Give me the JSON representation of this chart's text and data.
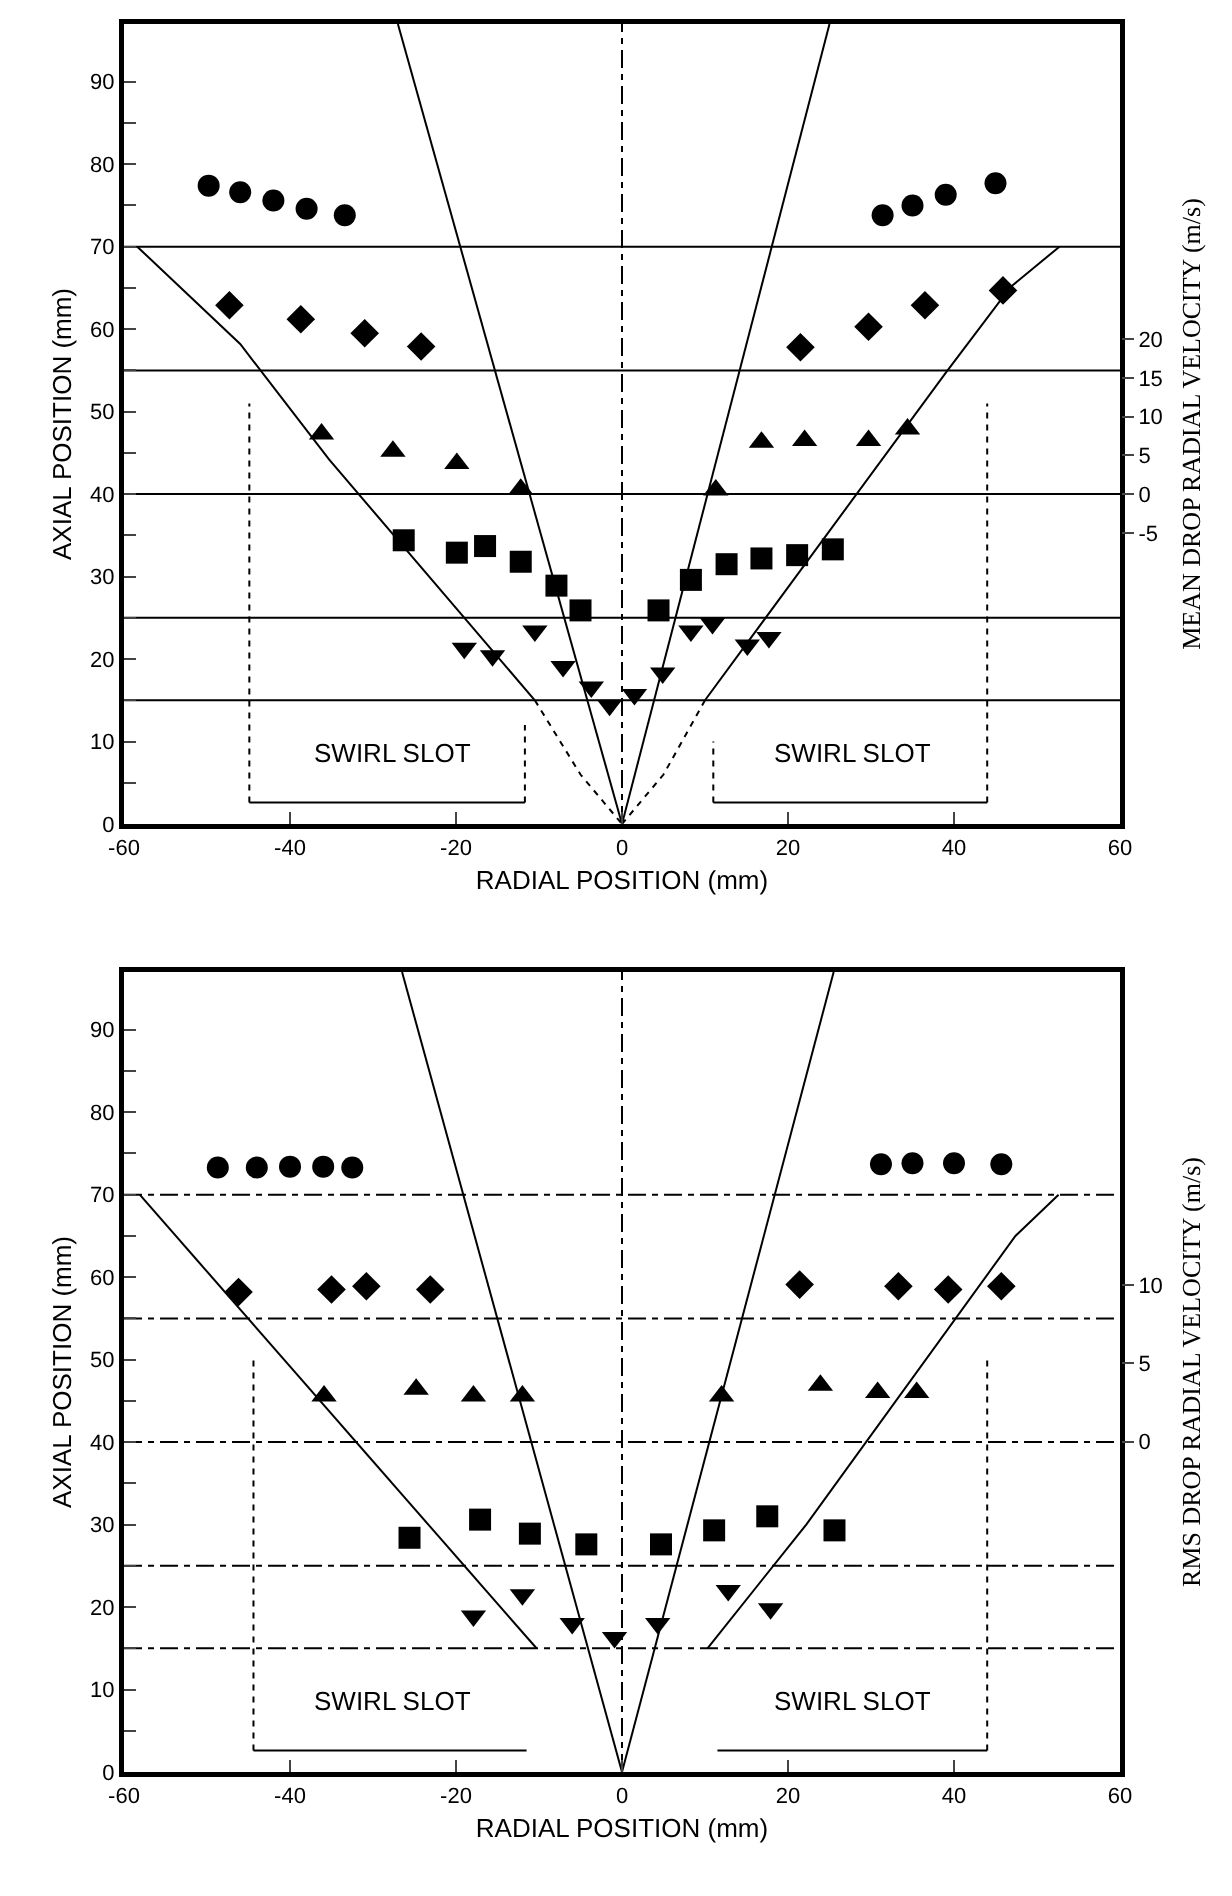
{
  "chart_data": [
    {
      "type": "scatter",
      "xlabel": "RADIAL POSITION (mm)",
      "ylabel": "AXIAL POSITION (mm)",
      "y2label": "MEAN DROP RADIAL VELOCITY (m/s)",
      "xlim": [
        -60,
        60
      ],
      "xticks": [
        -60,
        -40,
        -20,
        0,
        20,
        40,
        60
      ],
      "ylim": [
        0,
        97
      ],
      "yticks": [
        0,
        {
          "value": 5,
          "label": null
        },
        10,
        {
          "value": 15,
          "label": null
        },
        20,
        {
          "value": 25,
          "label": null
        },
        30,
        {
          "value": 35,
          "label": null
        },
        40,
        {
          "value": 45,
          "label": null
        },
        50,
        {
          "value": 55,
          "label": null
        },
        60,
        {
          "value": 65,
          "label": null
        },
        70,
        {
          "value": 75,
          "label": null
        },
        80,
        {
          "value": 85,
          "label": null
        },
        90
      ],
      "y2lim": [
        -42.5,
        60.6
      ],
      "y2ticks": [
        -5,
        0,
        5,
        10,
        15,
        20
      ],
      "grid": false,
      "annotations": [
        "SWIRL SLOT",
        "SWIRL SLOT"
      ],
      "ref_lines": [
        {
          "axis": "y",
          "value": 15,
          "color": "#000000",
          "line_style": "solid"
        },
        {
          "axis": "y",
          "value": 25,
          "color": "#000000",
          "line_style": "solid"
        },
        {
          "axis": "y",
          "value": 40,
          "color": "#000000",
          "line_style": "solid"
        },
        {
          "axis": "y",
          "value": 55,
          "color": "#000000",
          "line_style": "solid"
        },
        {
          "axis": "y",
          "value": 70,
          "color": "#000000",
          "line_style": "solid"
        },
        {
          "axis": "x",
          "value": 0,
          "color": "#000000",
          "line_style": "dashed"
        }
      ],
      "series": [
        {
          "type": "scatter",
          "marker": "circle",
          "color": "#000000",
          "x": [
            -49.8,
            -46,
            -42,
            -38,
            -33.4,
            0,
            31.4,
            35,
            39,
            45
          ],
          "values": [
            77.4,
            76.6,
            75.6,
            74.6,
            73.8,
            null,
            73.8,
            75,
            76.3,
            77.7
          ]
        },
        {
          "type": "scatter",
          "marker": "diamond",
          "color": "#000000",
          "x": [
            -47.3,
            -38.7,
            -31,
            -24.2,
            0,
            21.5,
            29.7,
            36.5,
            45.9
          ],
          "values": [
            62.9,
            61.2,
            59.5,
            57.9,
            null,
            57.8,
            60.3,
            62.9,
            64.7
          ]
        },
        {
          "type": "scatter",
          "marker": "triangle",
          "color": "#000000",
          "x": [
            -36.2,
            -27.6,
            -19.9,
            -12.2,
            0,
            11.3,
            16.8,
            22,
            29.7,
            34.4
          ],
          "values": [
            47.3,
            45.2,
            43.7,
            40.6,
            null,
            40.5,
            46.3,
            46.5,
            46.5,
            47.9
          ]
        },
        {
          "type": "scatter",
          "marker": "square",
          "color": "#000000",
          "x": [
            -26.3,
            -19.9,
            -16.5,
            -12.2,
            -7.9,
            -5,
            0,
            4.4,
            8.3,
            12.6,
            16.8,
            21.1,
            25.4
          ],
          "values": [
            34.4,
            32.9,
            33.7,
            31.8,
            28.9,
            25.9,
            null,
            25.9,
            29.6,
            31.5,
            32.2,
            32.6,
            33.3
          ]
        },
        {
          "type": "scatter",
          "marker": "triangle-down",
          "color": "#000000",
          "x": [
            -19,
            -15.6,
            -10.5,
            -7.1,
            -3.7,
            -1.5,
            1.5,
            4.9,
            8.3,
            10.9,
            15.1,
            17.7
          ],
          "values": [
            21.3,
            20.4,
            23.4,
            19.1,
            16.6,
            14.4,
            15.7,
            18.3,
            23.4,
            24.3,
            21.7,
            22.6
          ]
        },
        {
          "type": "line",
          "line_style": "solid",
          "color": "#000000",
          "x": [
            0,
            -27
          ],
          "values": [
            0,
            97
          ]
        },
        {
          "type": "line",
          "line_style": "solid",
          "color": "#000000",
          "x": [
            0,
            25
          ],
          "values": [
            0,
            97
          ]
        },
        {
          "type": "line",
          "line_style": "solid",
          "color": "#000000",
          "x": [
            -10.5,
            -35.3,
            -46,
            -58.4
          ],
          "values": [
            15,
            44.2,
            58.2,
            70
          ]
        },
        {
          "type": "line",
          "line_style": "solid",
          "color": "#000000",
          "x": [
            10,
            39,
            46.8,
            52.7
          ],
          "values": [
            15,
            54.7,
            65.1,
            70
          ]
        },
        {
          "type": "line",
          "line_style": "dotted",
          "color": "#000000",
          "x": [
            -10.5,
            -5,
            0
          ],
          "values": [
            15,
            6,
            0
          ]
        },
        {
          "type": "line",
          "line_style": "dotted",
          "color": "#000000",
          "x": [
            10,
            5,
            0
          ],
          "values": [
            15,
            6,
            0
          ]
        },
        {
          "type": "line",
          "line_style": "dotted",
          "color": "#000000",
          "x": [
            -44.9,
            -44.9
          ],
          "values": [
            2.6,
            51
          ]
        },
        {
          "type": "line",
          "line_style": "dotted",
          "color": "#000000",
          "x": [
            44,
            44
          ],
          "values": [
            2.6,
            51
          ]
        },
        {
          "type": "line",
          "line_style": "dotted",
          "color": "#000000",
          "x": [
            -11.7,
            -11.7
          ],
          "values": [
            2.6,
            12
          ]
        },
        {
          "type": "line",
          "line_style": "dotted",
          "color": "#000000",
          "x": [
            11,
            11
          ],
          "values": [
            2.6,
            10
          ]
        },
        {
          "type": "line",
          "line_style": "solid",
          "color": "#000000",
          "x": [
            -44.9,
            -11.7
          ],
          "values": [
            2.6,
            2.6
          ]
        },
        {
          "type": "line",
          "line_style": "solid",
          "color": "#000000",
          "x": [
            11,
            44
          ],
          "values": [
            2.6,
            2.6
          ]
        }
      ]
    },
    {
      "type": "scatter",
      "xlabel": "RADIAL POSITION (mm)",
      "ylabel": "AXIAL POSITION (mm)",
      "y2label": "RMS DROP RADIAL VELOCITY (m/s)",
      "xlim": [
        -60,
        60
      ],
      "xticks": [
        -60,
        -40,
        -20,
        0,
        20,
        40,
        60
      ],
      "ylim": [
        0,
        97
      ],
      "yticks": [
        0,
        {
          "value": 5,
          "label": null
        },
        10,
        {
          "value": 15,
          "label": null
        },
        20,
        {
          "value": 25,
          "label": null
        },
        30,
        {
          "value": 35,
          "label": null
        },
        40,
        {
          "value": 45,
          "label": null
        },
        50,
        {
          "value": 55,
          "label": null
        },
        60,
        {
          "value": 65,
          "label": null
        },
        70,
        {
          "value": 75,
          "label": null
        },
        80,
        {
          "value": 85,
          "label": null
        },
        90
      ],
      "y2lim": [
        -21.1,
        30
      ],
      "y2ticks": [
        0,
        5,
        10
      ],
      "grid": false,
      "annotations": [
        "SWIRL SLOT",
        "SWIRL SLOT"
      ],
      "ref_lines": [
        {
          "axis": "y",
          "value": 15,
          "color": "#000000",
          "line_style": "dashed"
        },
        {
          "axis": "y",
          "value": 25,
          "color": "#000000",
          "line_style": "dashed"
        },
        {
          "axis": "y",
          "value": 40,
          "color": "#000000",
          "line_style": "dashed"
        },
        {
          "axis": "y",
          "value": 55,
          "color": "#000000",
          "line_style": "dashed"
        },
        {
          "axis": "y",
          "value": 70,
          "color": "#000000",
          "line_style": "dashed"
        },
        {
          "axis": "x",
          "value": 0,
          "color": "#000000",
          "line_style": "dashed"
        }
      ],
      "series": [
        {
          "type": "scatter",
          "marker": "circle",
          "color": "#000000",
          "x": [
            -48.7,
            -44,
            -40,
            -36,
            -32.5,
            0,
            31.2,
            35,
            40,
            45.7
          ],
          "values": [
            73.3,
            73.3,
            73.4,
            73.4,
            73.3,
            null,
            73.7,
            73.8,
            73.8,
            73.7
          ]
        },
        {
          "type": "scatter",
          "marker": "diamond",
          "color": "#000000",
          "x": [
            -46.2,
            -35,
            -30.8,
            -23.1,
            0,
            21.4,
            33.3,
            39.3,
            45.7
          ],
          "values": [
            58.2,
            58.5,
            58.9,
            58.5,
            null,
            59.1,
            58.9,
            58.5,
            58.9
          ]
        },
        {
          "type": "scatter",
          "marker": "triangle",
          "color": "#000000",
          "x": [
            -35.9,
            -24.8,
            -17.9,
            -12,
            0,
            12,
            23.9,
            30.8,
            35.5
          ],
          "values": [
            45.6,
            46.4,
            45.6,
            45.6,
            null,
            45.6,
            46.9,
            46,
            46
          ]
        },
        {
          "type": "scatter",
          "marker": "square",
          "color": "#000000",
          "x": [
            -25.6,
            -17.1,
            -11.1,
            -4.3,
            0,
            4.7,
            11.1,
            17.5,
            25.6
          ],
          "values": [
            28.4,
            30.6,
            28.9,
            27.6,
            null,
            27.6,
            29.3,
            31,
            29.3
          ]
        },
        {
          "type": "scatter",
          "marker": "triangle-down",
          "color": "#000000",
          "x": [
            -17.9,
            -12,
            -6,
            -0.9,
            4.3,
            12.8,
            17.9
          ],
          "values": [
            18.9,
            21.5,
            18,
            16.3,
            18,
            22,
            19.8
          ]
        },
        {
          "type": "line",
          "line_style": "solid",
          "color": "#000000",
          "x": [
            0,
            -26.5
          ],
          "values": [
            0,
            97
          ]
        },
        {
          "type": "line",
          "line_style": "solid",
          "color": "#000000",
          "x": [
            0,
            25.5
          ],
          "values": [
            0,
            97
          ]
        },
        {
          "type": "line",
          "line_style": "solid",
          "color": "#000000",
          "x": [
            -10.3,
            -58.1
          ],
          "values": [
            15,
            70
          ]
        },
        {
          "type": "line",
          "line_style": "solid",
          "color": "#000000",
          "x": [
            10.3,
            22.2,
            47.4,
            52.6
          ],
          "values": [
            15,
            30,
            65,
            70
          ]
        },
        {
          "type": "line",
          "line_style": "dotted",
          "color": "#000000",
          "x": [
            -44.4,
            -44.4
          ],
          "values": [
            2.6,
            50
          ]
        },
        {
          "type": "line",
          "line_style": "dotted",
          "color": "#000000",
          "x": [
            44,
            44
          ],
          "values": [
            2.6,
            50
          ]
        },
        {
          "type": "line",
          "line_style": "solid",
          "color": "#000000",
          "x": [
            -44.4,
            -11.5
          ],
          "values": [
            2.6,
            2.6
          ]
        },
        {
          "type": "line",
          "line_style": "solid",
          "color": "#000000",
          "x": [
            11.5,
            44
          ],
          "values": [
            2.6,
            2.6
          ]
        }
      ]
    }
  ]
}
